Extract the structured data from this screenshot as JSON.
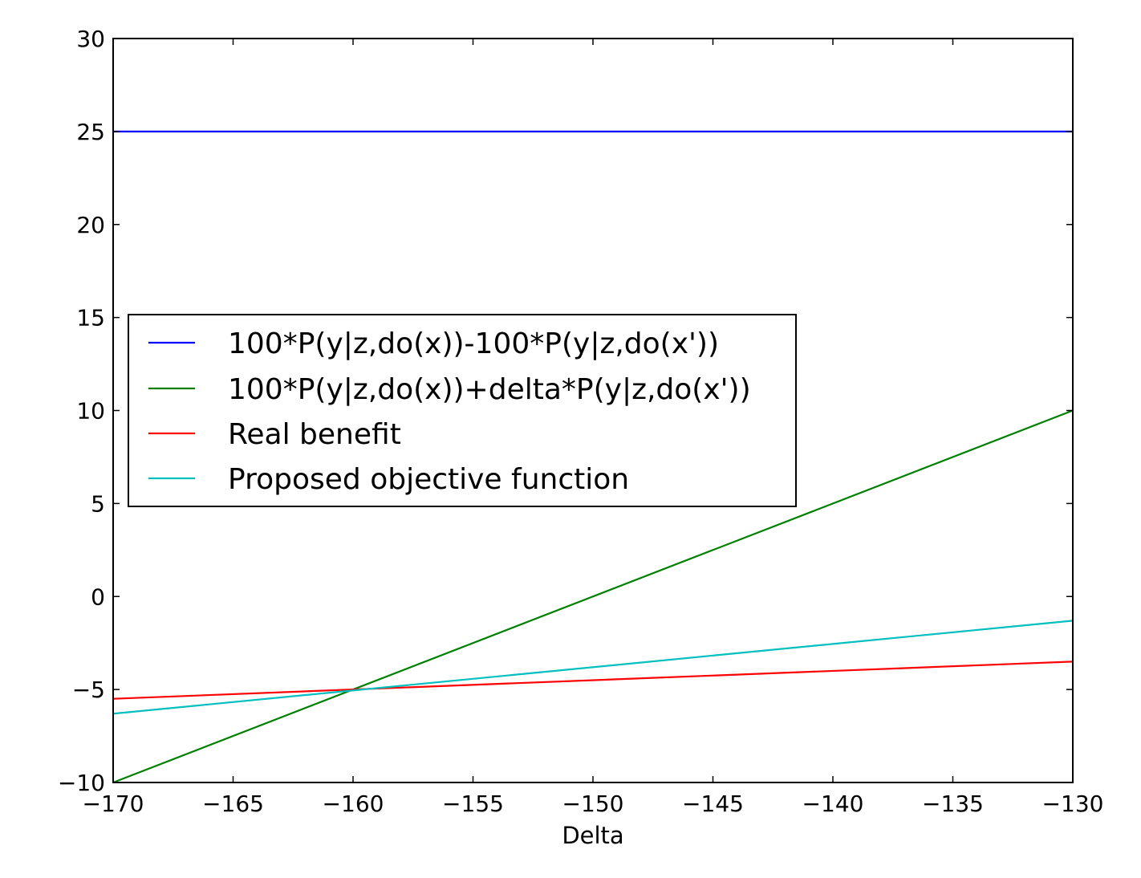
{
  "chart_data": {
    "type": "line",
    "title": "",
    "xlabel": "Delta",
    "ylabel": "",
    "xlim": [
      -170,
      -130
    ],
    "ylim": [
      -10,
      30
    ],
    "x_ticks": [
      -170,
      -165,
      -160,
      -155,
      -150,
      -145,
      -140,
      -135,
      -130
    ],
    "x_tick_labels": [
      "−170",
      "−165",
      "−160",
      "−155",
      "−150",
      "−145",
      "−140",
      "−135",
      "−130"
    ],
    "y_ticks": [
      -10,
      -5,
      0,
      5,
      10,
      15,
      20,
      25,
      30
    ],
    "y_tick_labels": [
      "−10",
      "−5",
      "0",
      "5",
      "10",
      "15",
      "20",
      "25",
      "30"
    ],
    "grid": false,
    "legend_position": "center-left",
    "series": [
      {
        "name": "100*P(y|z,do(x))-100*P(y|z,do(x'))",
        "color": "#0000ff",
        "x": [
          -170,
          -130
        ],
        "y": [
          25,
          25
        ]
      },
      {
        "name": "100*P(y|z,do(x))+delta*P(y|z,do(x'))",
        "color": "#008000",
        "x": [
          -170,
          -130
        ],
        "y": [
          -10,
          10
        ]
      },
      {
        "name": "Real benefit",
        "color": "#ff0000",
        "x": [
          -170,
          -130
        ],
        "y": [
          -5.5,
          -3.5
        ]
      },
      {
        "name": "Proposed objective function",
        "color": "#00bfbf",
        "x": [
          -170,
          -130
        ],
        "y": [
          -6.3,
          -1.3
        ]
      }
    ]
  }
}
